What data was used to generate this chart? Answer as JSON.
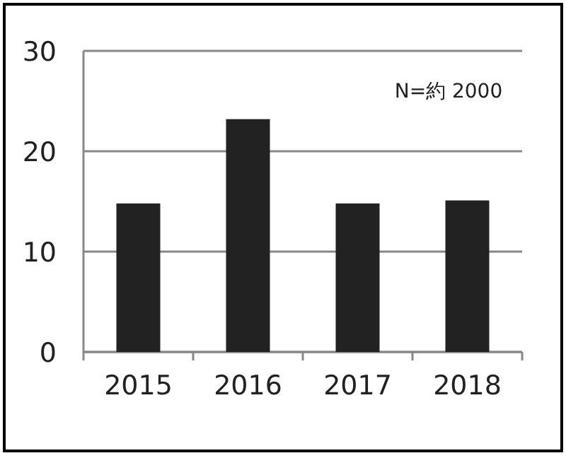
{
  "chart_data": {
    "type": "bar",
    "categories": [
      "2015",
      "2016",
      "2017",
      "2018"
    ],
    "values": [
      14.8,
      23.2,
      14.8,
      15.1
    ],
    "color": "#222222",
    "ylim": [
      0,
      30
    ],
    "yticks": [
      0,
      10,
      20,
      30
    ],
    "grid": "y",
    "annotations": [
      "N=約 2000"
    ]
  }
}
